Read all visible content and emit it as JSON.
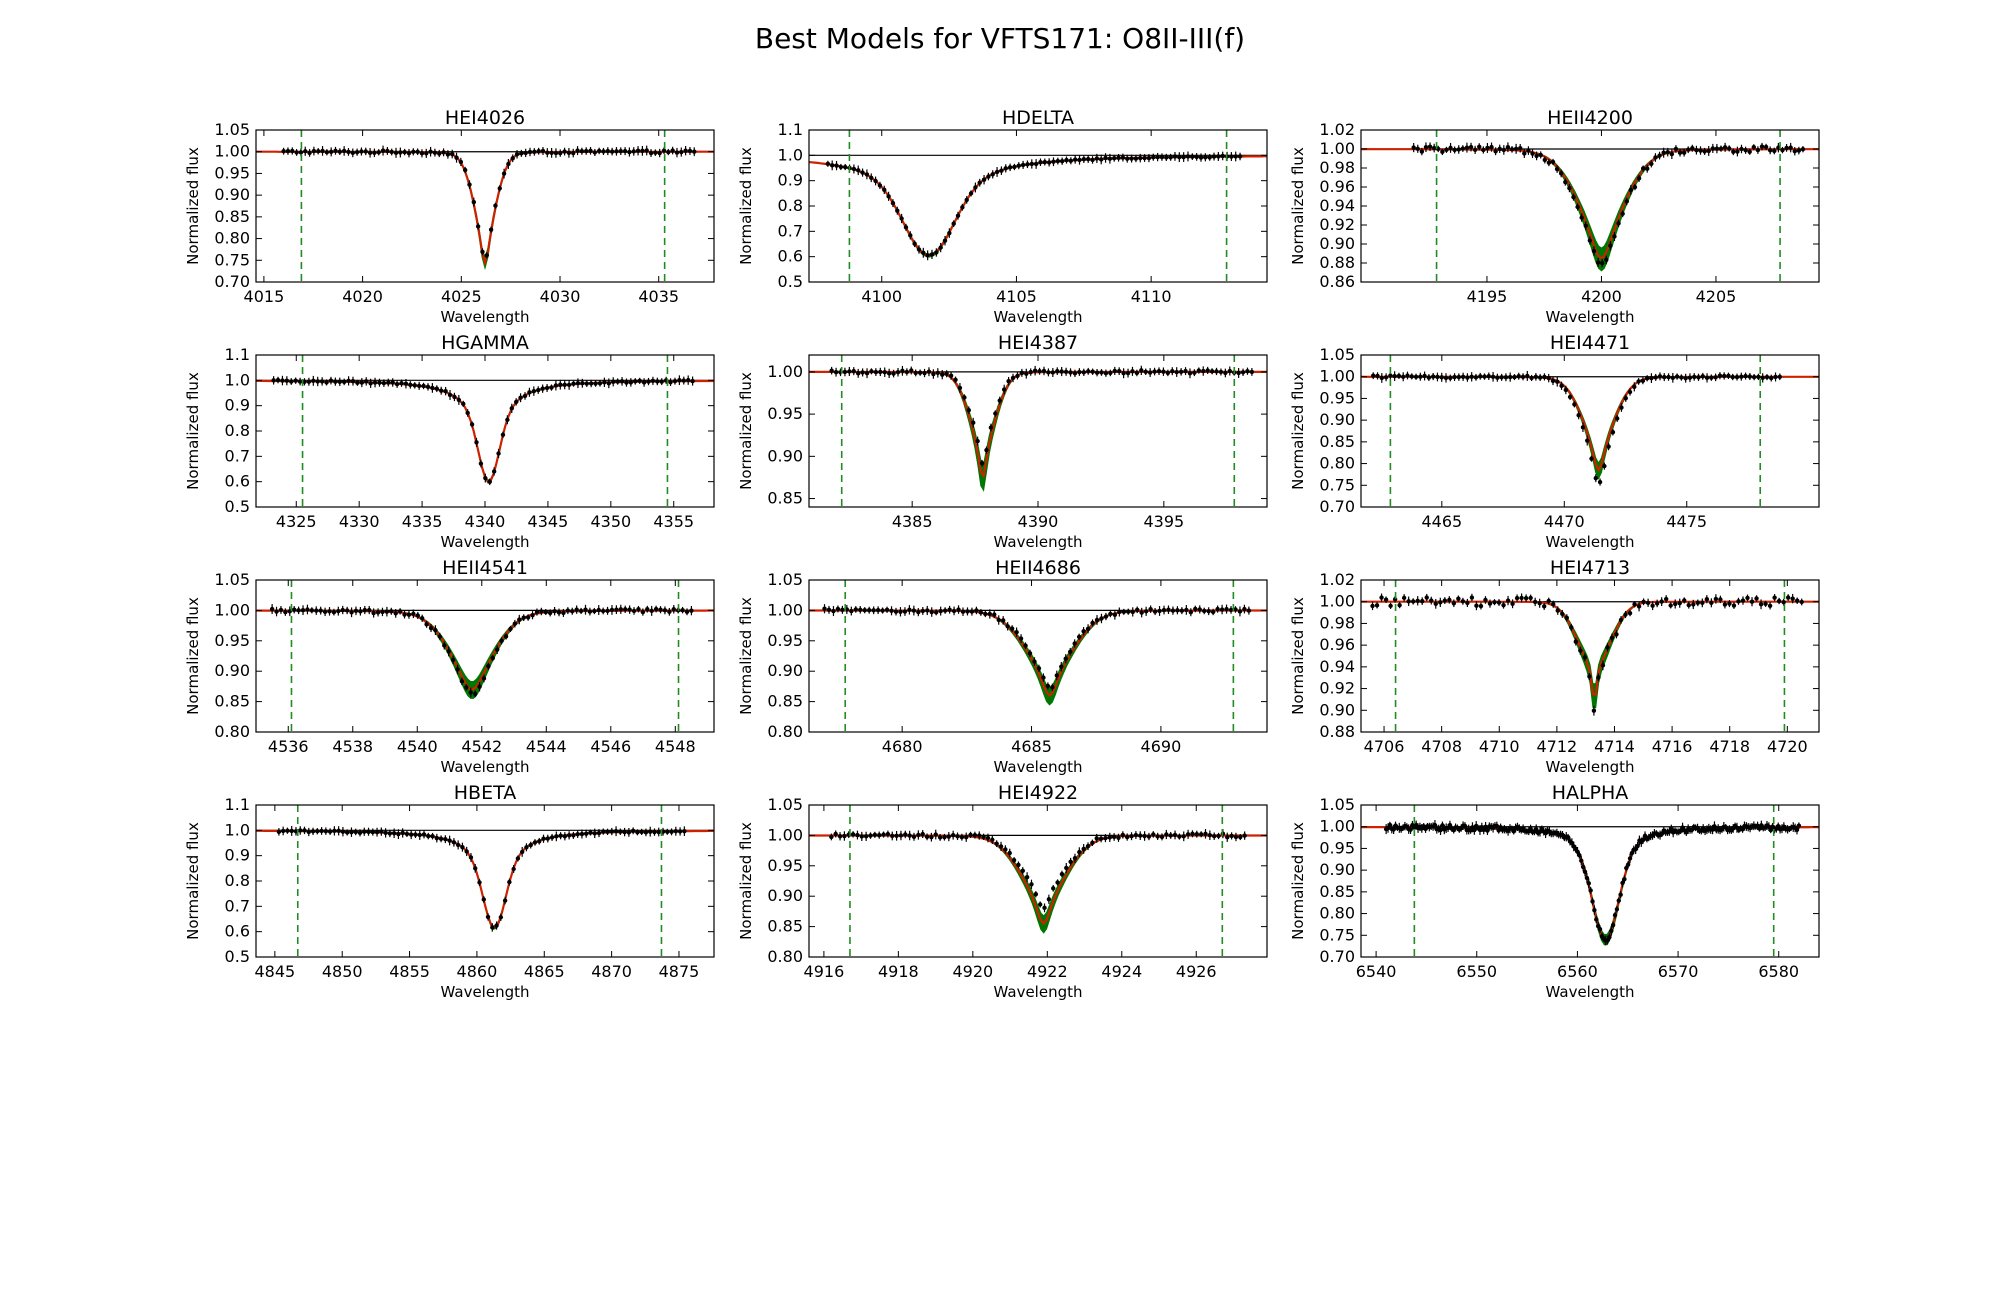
{
  "title": "Best Models for VFTS171: O8II-III(f)",
  "colors": {
    "data": "#000000",
    "best_model": "#cc2200",
    "model_band": "#007700",
    "window_marker": "#228b22",
    "continuum": "#000000"
  },
  "chart_data": [
    {
      "type": "line",
      "title": "HEI4026",
      "xlabel": "Wavelength",
      "ylabel": "Normalized flux",
      "xlim": [
        4014.6,
        4037.8
      ],
      "ylim": [
        0.7,
        1.05
      ],
      "xticks": [
        4015,
        4020,
        4025,
        4030,
        4035
      ],
      "yticks": [
        0.7,
        0.75,
        0.8,
        0.85,
        0.9,
        0.95,
        1.0,
        1.05
      ],
      "ydec": 2,
      "center": 4026.2,
      "depth": 0.255,
      "sigma": 0.6,
      "gamma": 0.3,
      "band": 0.012,
      "obs_scale": 0.98,
      "windows": [
        4016.9,
        4035.3
      ],
      "obs_range": [
        4016.0,
        4036.8
      ],
      "noise": 0.003
    },
    {
      "type": "line",
      "title": "HDELTA",
      "xlabel": "Wavelength",
      "ylabel": "Normalized flux",
      "xlim": [
        4097.3,
        4114.3
      ],
      "ylim": [
        0.5,
        1.1
      ],
      "xticks": [
        4100,
        4105,
        4110
      ],
      "yticks": [
        0.5,
        0.6,
        0.7,
        0.8,
        0.9,
        1.0,
        1.1
      ],
      "ydec": 1,
      "center": 4101.75,
      "depth": 0.395,
      "sigma": 0.9,
      "gamma": 2.0,
      "band": 0.006,
      "obs_scale": 1.0,
      "windows": [
        4098.8,
        4112.8
      ],
      "obs_range": [
        4098.0,
        4113.3
      ],
      "noise": 0.003
    },
    {
      "type": "line",
      "title": "HEII4200",
      "xlabel": "Wavelength",
      "ylabel": "Normalized flux",
      "xlim": [
        4189.5,
        4209.5
      ],
      "ylim": [
        0.86,
        1.02
      ],
      "xticks": [
        4195,
        4200,
        4205
      ],
      "yticks": [
        0.86,
        0.88,
        0.9,
        0.92,
        0.94,
        0.96,
        0.98,
        1.0,
        1.02
      ],
      "ydec": 2,
      "center": 4200.0,
      "depth": 0.115,
      "sigma": 1.1,
      "gamma": 0.6,
      "band": 0.012,
      "obs_scale": 1.06,
      "windows": [
        4192.8,
        4207.8
      ],
      "obs_range": [
        4191.8,
        4208.8
      ],
      "noise": 0.003
    },
    {
      "type": "line",
      "title": "HGAMMA",
      "xlabel": "Wavelength",
      "ylabel": "Normalized flux",
      "xlim": [
        4321.8,
        4358.2
      ],
      "ylim": [
        0.5,
        1.1
      ],
      "xticks": [
        4325,
        4330,
        4335,
        4340,
        4345,
        4350,
        4355
      ],
      "yticks": [
        0.5,
        0.6,
        0.7,
        0.8,
        0.9,
        1.0,
        1.1
      ],
      "ydec": 1,
      "center": 4340.3,
      "depth": 0.4,
      "sigma": 0.8,
      "gamma": 2.2,
      "band": 0.006,
      "obs_scale": 1.0,
      "windows": [
        4325.5,
        4354.5
      ],
      "obs_range": [
        4323.2,
        4356.5
      ],
      "noise": 0.004
    },
    {
      "type": "line",
      "title": "HEI4387",
      "xlabel": "Wavelength",
      "ylabel": "Normalized flux",
      "xlim": [
        4380.9,
        4399.1
      ],
      "ylim": [
        0.84,
        1.02
      ],
      "xticks": [
        4385,
        4390,
        4395
      ],
      "yticks": [
        0.85,
        0.9,
        0.95,
        1.0
      ],
      "ydec": 2,
      "center": 4387.8,
      "depth": 0.125,
      "sigma": 0.55,
      "gamma": 0.2,
      "band": 0.016,
      "obs_scale": 0.88,
      "windows": [
        4382.2,
        4397.8
      ],
      "obs_range": [
        4381.8,
        4398.5
      ],
      "noise": 0.002
    },
    {
      "type": "line",
      "title": "HEI4471",
      "xlabel": "Wavelength",
      "ylabel": "Normalized flux",
      "xlim": [
        4461.7,
        4480.4
      ],
      "ylim": [
        0.7,
        1.05
      ],
      "xticks": [
        4465,
        4470,
        4475
      ],
      "yticks": [
        0.7,
        0.75,
        0.8,
        0.85,
        0.9,
        0.95,
        1.0,
        1.05
      ],
      "ydec": 2,
      "center": 4471.4,
      "depth": 0.215,
      "sigma": 0.7,
      "gamma": 0.3,
      "band": 0.018,
      "obs_scale": 1.16,
      "windows": [
        4462.9,
        4478.0
      ],
      "obs_range": [
        4462.2,
        4478.8
      ],
      "noise": 0.003
    },
    {
      "type": "line",
      "title": "HEII4541",
      "xlabel": "Wavelength",
      "ylabel": "Normalized flux",
      "xlim": [
        4535.0,
        4549.2
      ],
      "ylim": [
        0.8,
        1.05
      ],
      "xticks": [
        4536,
        4538,
        4540,
        4542,
        4544,
        4546,
        4548
      ],
      "yticks": [
        0.8,
        0.85,
        0.9,
        0.95,
        1.0,
        1.05
      ],
      "ydec": 2,
      "center": 4541.7,
      "depth": 0.13,
      "sigma": 0.75,
      "gamma": 0.5,
      "band": 0.014,
      "obs_scale": 1.06,
      "windows": [
        4536.1,
        4548.1
      ],
      "obs_range": [
        4535.5,
        4548.5
      ],
      "noise": 0.003
    },
    {
      "type": "line",
      "title": "HEII4686",
      "xlabel": "Wavelength",
      "ylabel": "Normalized flux",
      "xlim": [
        4676.4,
        4694.1
      ],
      "ylim": [
        0.8,
        1.05
      ],
      "xticks": [
        4680,
        4685,
        4690
      ],
      "yticks": [
        0.8,
        0.85,
        0.9,
        0.95,
        1.0,
        1.05
      ],
      "ydec": 2,
      "center": 4685.7,
      "depth": 0.14,
      "sigma": 1.0,
      "gamma": 0.4,
      "band": 0.014,
      "obs_scale": 0.92,
      "windows": [
        4677.8,
        4692.8
      ],
      "obs_range": [
        4677.0,
        4693.4
      ],
      "noise": 0.003
    },
    {
      "type": "line",
      "title": "HEI4713",
      "xlabel": "Wavelength",
      "ylabel": "Normalized flux",
      "xlim": [
        4705.2,
        4721.1
      ],
      "ylim": [
        0.88,
        1.02
      ],
      "xticks": [
        4706,
        4708,
        4710,
        4712,
        4714,
        4716,
        4718,
        4720
      ],
      "yticks": [
        0.88,
        0.9,
        0.92,
        0.94,
        0.96,
        0.98,
        1.0,
        1.02
      ],
      "ydec": 2,
      "center": 4713.3,
      "depth": 0.093,
      "sigma": 0.6,
      "gamma": 0.1,
      "band": 0.012,
      "obs_scale": 1.05,
      "windows": [
        4706.4,
        4719.9
      ],
      "obs_range": [
        4705.6,
        4720.5
      ],
      "noise": 0.004
    },
    {
      "type": "line",
      "title": "HBETA",
      "xlabel": "Wavelength",
      "ylabel": "Normalized flux",
      "xlim": [
        4843.6,
        4877.6
      ],
      "ylim": [
        0.5,
        1.1
      ],
      "xticks": [
        4845,
        4850,
        4855,
        4860,
        4865,
        4870,
        4875
      ],
      "yticks": [
        0.5,
        0.6,
        0.7,
        0.8,
        0.9,
        1.0,
        1.1
      ],
      "ydec": 1,
      "center": 4861.3,
      "depth": 0.385,
      "sigma": 0.8,
      "gamma": 2.0,
      "band": 0.006,
      "obs_scale": 1.0,
      "windows": [
        4846.7,
        4873.7
      ],
      "obs_range": [
        4845.3,
        4875.4
      ],
      "noise": 0.004
    },
    {
      "type": "line",
      "title": "HEI4922",
      "xlabel": "Wavelength",
      "ylabel": "Normalized flux",
      "xlim": [
        4915.6,
        4927.9
      ],
      "ylim": [
        0.8,
        1.05
      ],
      "xticks": [
        4916,
        4918,
        4920,
        4922,
        4924,
        4926
      ],
      "yticks": [
        0.8,
        0.85,
        0.9,
        0.95,
        1.0,
        1.05
      ],
      "ydec": 2,
      "center": 4921.9,
      "depth": 0.145,
      "sigma": 0.65,
      "gamma": 0.25,
      "band": 0.014,
      "obs_scale": 0.82,
      "windows": [
        4916.7,
        4926.7
      ],
      "obs_range": [
        4916.2,
        4927.3
      ],
      "noise": 0.003
    },
    {
      "type": "line",
      "title": "HALPHA",
      "xlabel": "Wavelength",
      "ylabel": "Normalized flux",
      "xlim": [
        6538.5,
        6584.0
      ],
      "ylim": [
        0.7,
        1.05
      ],
      "xticks": [
        6540,
        6550,
        6560,
        6570,
        6580
      ],
      "yticks": [
        0.7,
        0.75,
        0.8,
        0.85,
        0.9,
        0.95,
        1.0,
        1.05
      ],
      "ydec": 2,
      "center": 6562.8,
      "depth": 0.26,
      "sigma": 1.3,
      "gamma": 2.2,
      "band": 0.012,
      "obs_scale": 1.0,
      "windows": [
        6543.8,
        6579.5
      ],
      "obs_range": [
        6541.0,
        6582.0
      ],
      "noise": 0.006
    }
  ]
}
